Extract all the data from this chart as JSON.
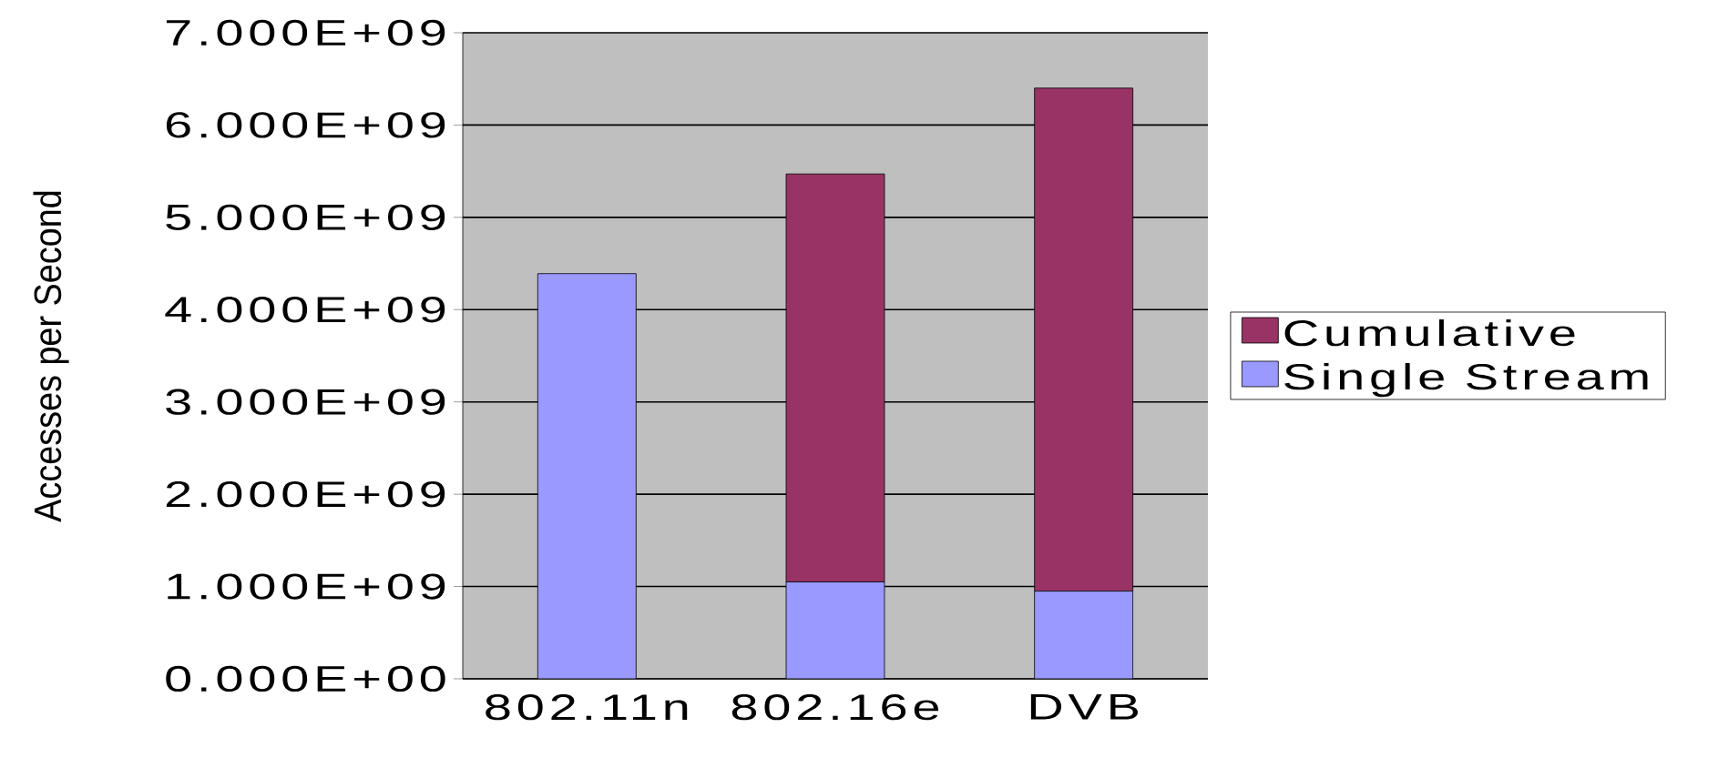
{
  "chart_data": {
    "type": "bar",
    "stacked": true,
    "ylabel": "Accesses per Second",
    "categories": [
      "802.11n",
      "802.16e",
      "DVB"
    ],
    "series": [
      {
        "name": "Single Stream",
        "color": "#9999ff",
        "values": [
          4390000000.0,
          1050000000.0,
          950000000.0
        ]
      },
      {
        "name": "Cumulative",
        "color": "#993366",
        "values": [
          null,
          4420000000.0,
          5450000000.0
        ]
      }
    ],
    "ylim": [
      0,
      7000000000.0
    ],
    "yticks": [
      {
        "value": 0,
        "label": "0.000E+00"
      },
      {
        "value": 1000000000.0,
        "label": "1.000E+09"
      },
      {
        "value": 2000000000.0,
        "label": "2.000E+09"
      },
      {
        "value": 3000000000.0,
        "label": "3.000E+09"
      },
      {
        "value": 4000000000.0,
        "label": "4.000E+09"
      },
      {
        "value": 5000000000.0,
        "label": "5.000E+09"
      },
      {
        "value": 6000000000.0,
        "label": "6.000E+09"
      },
      {
        "value": 7000000000.0,
        "label": "7.000E+09"
      }
    ],
    "grid": "y",
    "legend": "right"
  }
}
